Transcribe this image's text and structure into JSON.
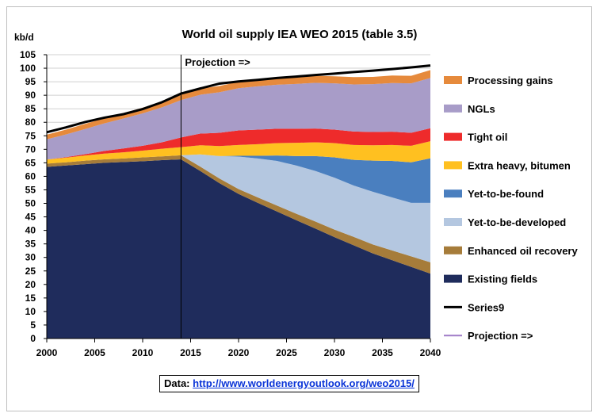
{
  "chart_data": {
    "type": "area",
    "title": "World oil supply IEA WEO 2015 (table 3.5)",
    "ylabel": "kb/d",
    "xlabel": "",
    "x": [
      2000,
      2002,
      2004,
      2006,
      2008,
      2010,
      2012,
      2014,
      2016,
      2018,
      2020,
      2022,
      2024,
      2026,
      2028,
      2030,
      2032,
      2034,
      2036,
      2038,
      2040
    ],
    "xlim": [
      2000,
      2040
    ],
    "ylim": [
      0,
      105
    ],
    "xticks": [
      2000,
      2005,
      2010,
      2015,
      2020,
      2025,
      2030,
      2035,
      2040
    ],
    "yticks": [
      0,
      5,
      10,
      15,
      20,
      25,
      30,
      35,
      40,
      45,
      50,
      55,
      60,
      65,
      70,
      75,
      80,
      85,
      90,
      95,
      100,
      105
    ],
    "projection_start": 2014,
    "projection_label": "Projection =>",
    "grid": "horizontal",
    "legend_position": "right",
    "series": [
      {
        "name": "Existing fields",
        "color": "#1f2c5c",
        "values": [
          63.5,
          64.0,
          64.5,
          65.0,
          65.3,
          65.6,
          66.0,
          66.3,
          62.0,
          57.5,
          53.5,
          50.2,
          47.0,
          43.8,
          40.7,
          37.5,
          34.5,
          31.5,
          29.0,
          26.5,
          24.0
        ]
      },
      {
        "name": "Enhanced oil recovery",
        "color": "#a67c3a",
        "values": [
          1.2,
          1.2,
          1.3,
          1.3,
          1.3,
          1.4,
          1.4,
          1.5,
          1.6,
          1.7,
          1.8,
          2.0,
          2.2,
          2.4,
          2.6,
          2.8,
          3.1,
          3.3,
          3.6,
          3.9,
          4.2
        ]
      },
      {
        "name": "Yet-to-be-developed",
        "color": "#b4c7e0",
        "values": [
          0,
          0,
          0,
          0,
          0,
          0,
          0,
          0,
          4.5,
          8.3,
          12.0,
          14.4,
          16.5,
          17.8,
          18.7,
          19.2,
          19.0,
          19.5,
          19.6,
          19.8,
          22.0
        ]
      },
      {
        "name": "Yet-to-be-found",
        "color": "#4a7fbf",
        "values": [
          0,
          0,
          0,
          0,
          0,
          0,
          0,
          0,
          0,
          0,
          0.3,
          1.0,
          2.0,
          3.5,
          5.5,
          7.5,
          9.5,
          11.5,
          13.5,
          15.0,
          16.5
        ]
      },
      {
        "name": "Extra heavy, bitumen",
        "color": "#ffc020",
        "values": [
          1.5,
          1.7,
          1.9,
          2.1,
          2.3,
          2.5,
          2.8,
          3.0,
          3.4,
          3.7,
          4.0,
          4.3,
          4.6,
          4.9,
          5.1,
          5.3,
          5.5,
          5.7,
          5.9,
          6.1,
          6.3
        ]
      },
      {
        "name": "Tight oil",
        "color": "#ee2b2b",
        "values": [
          0,
          0.2,
          0.5,
          1.0,
          1.4,
          1.8,
          2.4,
          3.6,
          4.3,
          4.9,
          5.4,
          5.4,
          5.3,
          5.2,
          5.1,
          5.0,
          5.0,
          4.9,
          4.9,
          4.8,
          4.8
        ]
      },
      {
        "name": "NGLs",
        "color": "#a89cc8",
        "values": [
          7.5,
          8.4,
          9.3,
          10.2,
          11.1,
          12.0,
          12.9,
          13.8,
          14.4,
          15.0,
          15.6,
          16.0,
          16.3,
          16.6,
          16.9,
          17.1,
          17.4,
          17.7,
          18.0,
          18.3,
          18.6
        ]
      },
      {
        "name": "Processing gains",
        "color": "#e68a3c",
        "values": [
          1.7,
          1.8,
          1.9,
          1.9,
          2.0,
          2.1,
          2.1,
          2.2,
          2.3,
          2.3,
          2.4,
          2.4,
          2.5,
          2.5,
          2.6,
          2.6,
          2.7,
          2.7,
          2.8,
          2.8,
          2.9
        ]
      }
    ],
    "line_series": [
      {
        "name": "Series9",
        "color": "#000000",
        "values": [
          76.3,
          78.1,
          80.1,
          81.7,
          83.0,
          84.9,
          87.4,
          90.6,
          92.5,
          94.3,
          95.1,
          95.7,
          96.4,
          96.9,
          97.5,
          98.0,
          98.6,
          99.1,
          99.7,
          100.3,
          101.0
        ]
      },
      {
        "name": "Projection =>",
        "color": "#a07cc8",
        "values": []
      }
    ]
  },
  "source": {
    "label": "Data:",
    "url": "http://www.worldenergyoutlook.org/weo2015/"
  }
}
